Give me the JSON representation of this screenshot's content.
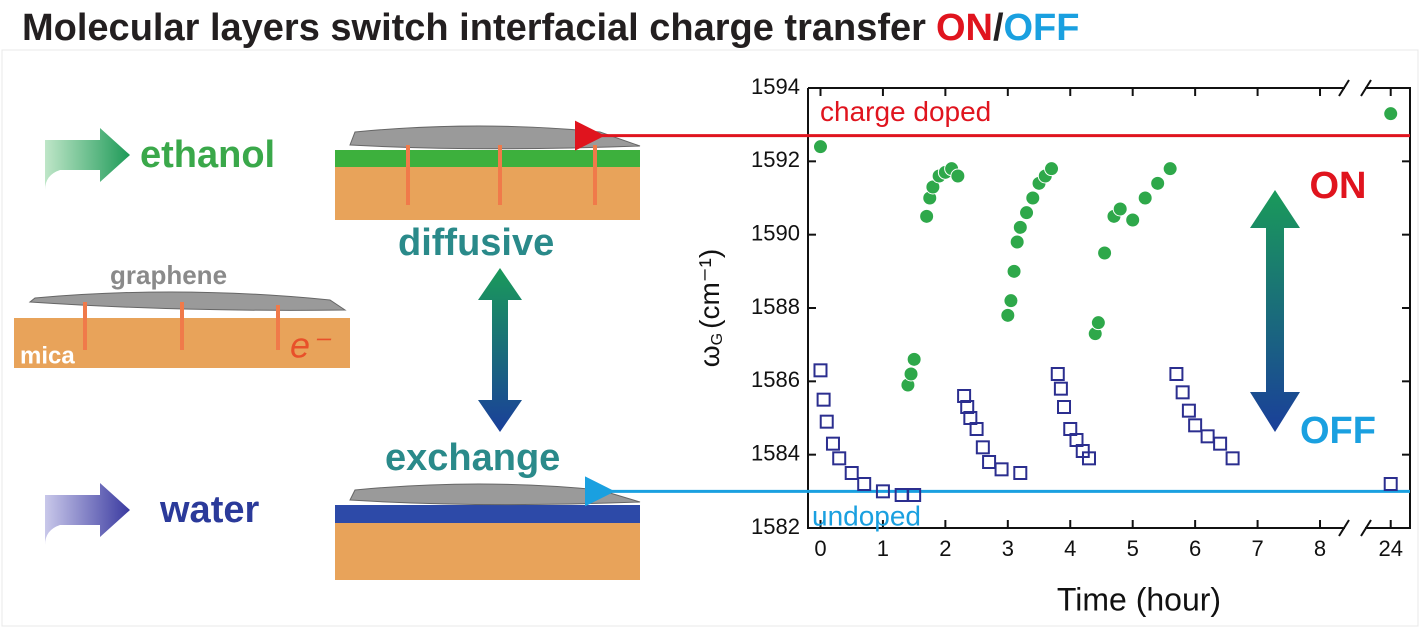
{
  "title": {
    "parts": [
      "Molecular layers switch interfacial charge transfer",
      "ON",
      "/",
      "OFF"
    ],
    "colors": [
      "#231f20",
      "#e0141e",
      "#231f20",
      "#1aa0e0"
    ]
  },
  "diagram": {
    "ethanol": "ethanol",
    "diffusive": "diffusive",
    "graphene": "graphene",
    "mica": "mica",
    "electron": "e⁻",
    "exchange": "exchange",
    "water": "water"
  },
  "chart_data": {
    "type": "scatter",
    "xlabel": "Time (hour)",
    "ylabel": {
      "symbol": "ω",
      "subscript": "G",
      "unit": "(cm⁻¹)"
    },
    "xlim": [
      -0.2,
      24.3
    ],
    "xbreak": [
      8.4,
      23.6
    ],
    "ylim": [
      1582,
      1594
    ],
    "xticks": [
      0,
      1,
      2,
      3,
      4,
      5,
      6,
      7,
      8,
      24
    ],
    "yticks": [
      1582,
      1584,
      1586,
      1588,
      1590,
      1592,
      1594
    ],
    "series": [
      {
        "color": "#2ea84a",
        "marker": "circle",
        "x": [
          0,
          1.4,
          1.45,
          1.5,
          1.7,
          1.75,
          1.8,
          1.9,
          2.0,
          2.1,
          2.2,
          3.0,
          3.05,
          3.1,
          3.15,
          3.2,
          3.3,
          3.4,
          3.5,
          3.6,
          3.7,
          4.4,
          4.45,
          4.55,
          4.7,
          4.8,
          5.0,
          5.2,
          5.4,
          5.6,
          24
        ],
        "values": [
          1592.4,
          1585.9,
          1586.2,
          1586.6,
          1590.5,
          1591,
          1591.3,
          1591.6,
          1591.7,
          1591.8,
          1591.6,
          1587.8,
          1588.2,
          1589,
          1589.8,
          1590.2,
          1590.6,
          1591,
          1591.4,
          1591.6,
          1591.8,
          1587.3,
          1587.6,
          1589.5,
          1590.5,
          1590.7,
          1590.4,
          1591,
          1591.4,
          1591.8,
          1593.3
        ]
      },
      {
        "color": "#2b2e8f",
        "marker": "square",
        "x": [
          0,
          0.05,
          0.1,
          0.2,
          0.3,
          0.5,
          0.7,
          1.0,
          1.3,
          1.5,
          2.3,
          2.35,
          2.4,
          2.5,
          2.6,
          2.7,
          2.9,
          3.2,
          3.8,
          3.85,
          3.9,
          4.0,
          4.1,
          4.2,
          4.3,
          5.7,
          5.8,
          5.9,
          6.0,
          6.2,
          6.4,
          6.6,
          24
        ],
        "values": [
          1586.3,
          1585.5,
          1584.9,
          1584.3,
          1583.9,
          1583.5,
          1583.2,
          1583,
          1582.9,
          1582.9,
          1585.6,
          1585.3,
          1585,
          1584.7,
          1584.2,
          1583.8,
          1583.6,
          1583.5,
          1586.2,
          1585.8,
          1585.3,
          1584.7,
          1584.4,
          1584.1,
          1583.9,
          1586.2,
          1585.7,
          1585.2,
          1584.8,
          1584.5,
          1584.3,
          1583.9,
          1583.2
        ]
      }
    ],
    "annotations": [
      {
        "text": "charge doped",
        "y": 1592.7,
        "color": "#e0141e"
      },
      {
        "text": "undoped",
        "y": 1583,
        "color": "#1aa0e0"
      },
      {
        "text": "ON",
        "color": "#e0141e"
      },
      {
        "text": "OFF",
        "color": "#1aa0e0"
      }
    ]
  }
}
